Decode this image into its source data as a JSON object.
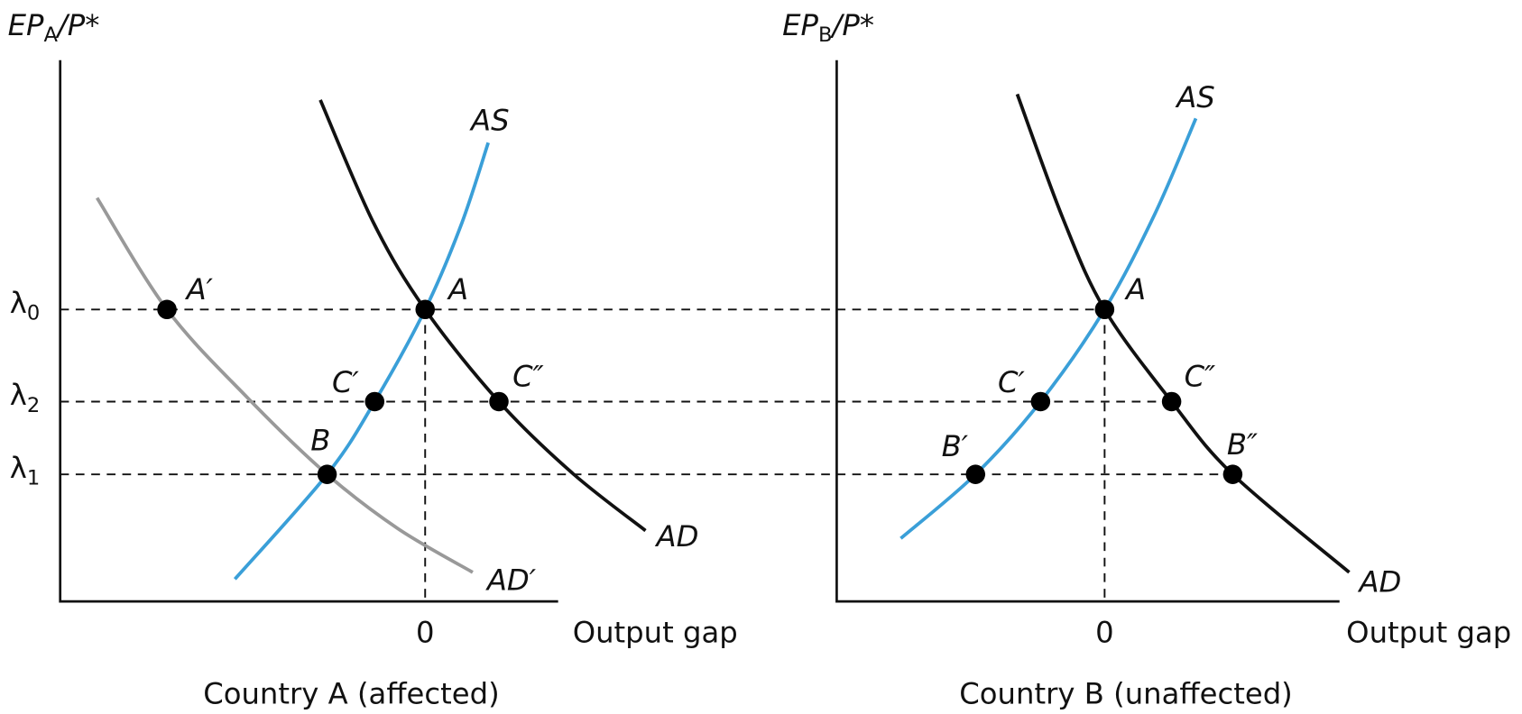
{
  "panels": [
    {
      "title": "Country A (affected)",
      "y_axis_label": {
        "main": "EP",
        "sub": "A",
        "rest": "/P*"
      },
      "x_axis_label": "Output gap",
      "x_tick": "0",
      "y_ticks": [
        {
          "symbol": "λ",
          "sub": "0"
        },
        {
          "symbol": "λ",
          "sub": "2"
        },
        {
          "symbol": "λ",
          "sub": "1"
        }
      ],
      "curves": [
        "AS",
        "AD",
        "AD′"
      ],
      "points": [
        "A′",
        "A",
        "C′",
        "C″",
        "B"
      ]
    },
    {
      "title": "Country B (unaffected)",
      "y_axis_label": {
        "main": "EP",
        "sub": "B",
        "rest": "/P*"
      },
      "x_axis_label": "Output gap",
      "x_tick": "0",
      "curves": [
        "AS",
        "AD"
      ],
      "points": [
        "A",
        "C′",
        "C″",
        "B′",
        "B″"
      ]
    }
  ]
}
